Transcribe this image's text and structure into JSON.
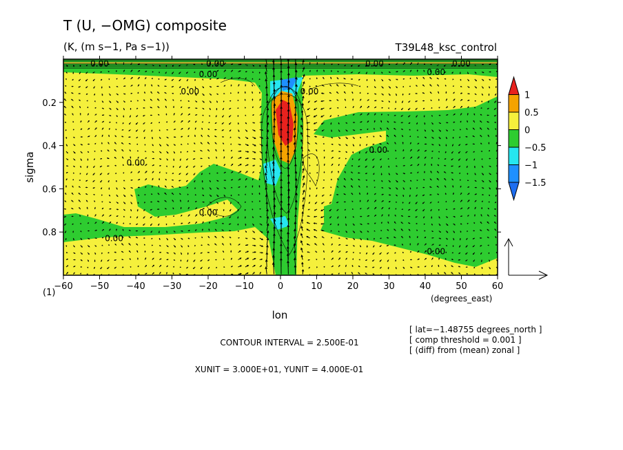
{
  "chart_data": {
    "type": "heatmap",
    "title": "T (U, −OMG) composite",
    "subtitle": "(K, (m s−1, Pa s−1))",
    "experiment": "T39L48_ksc_control",
    "xlabel": "lon",
    "ylabel": "sigma",
    "x_units": "(degrees_east)",
    "xlim": [
      -60,
      60
    ],
    "ylim": [
      1.0,
      0.0
    ],
    "y_inverted": true,
    "x_ticks": [
      -60,
      -50,
      -40,
      -30,
      -20,
      -10,
      0,
      10,
      20,
      30,
      40,
      50,
      60
    ],
    "x_tick_labels": [
      "−60",
      "−50",
      "−40",
      "−30",
      "−20",
      "−10",
      "0",
      "10",
      "20",
      "30",
      "40",
      "50",
      "60"
    ],
    "y_ticks": [
      0.2,
      0.4,
      0.6,
      0.8
    ],
    "y_tick_labels": [
      "0.2",
      "0.4",
      "0.6",
      "0.8"
    ],
    "corner_label": "(1)",
    "colorbar": {
      "levels": [
        "1",
        "0.5",
        "0",
        "−0.5",
        "−1",
        "−1.5"
      ],
      "colors": [
        "#e8221e",
        "#f5a300",
        "#f5f03c",
        "#2ecc30",
        "#26e6f0",
        "#1e90ff",
        "#1e6ef0"
      ]
    },
    "contour_labels": [
      {
        "text": "0.00",
        "lon": -50,
        "sigma": 0.02
      },
      {
        "text": "0.00",
        "lon": -18,
        "sigma": 0.02
      },
      {
        "text": "0.00",
        "lon": 50,
        "sigma": 0.02
      },
      {
        "text": "0.00",
        "lon": -20,
        "sigma": 0.07
      },
      {
        "text": "0.00",
        "lon": -25,
        "sigma": 0.15
      },
      {
        "text": "0.00",
        "lon": 8,
        "sigma": 0.15
      },
      {
        "text": "0.00",
        "lon": 26,
        "sigma": 0.02
      },
      {
        "text": "0.00",
        "lon": 43,
        "sigma": 0.06
      },
      {
        "text": "0.00",
        "lon": 27,
        "sigma": 0.42
      },
      {
        "text": "0.00",
        "lon": -40,
        "sigma": 0.48
      },
      {
        "text": "0.00",
        "lon": -20,
        "sigma": 0.71
      },
      {
        "text": "0.00",
        "lon": -46,
        "sigma": 0.83
      },
      {
        "text": "0.00",
        "lon": 43,
        "sigma": 0.89
      }
    ],
    "vector_reference": {
      "xunit": "3.000E+01",
      "yunit": "4.000E-01"
    },
    "contour_interval": "CONTOUR INTERVAL = 2.500E-01",
    "unit_text": "XUNIT = 3.000E+01, YUNIT = 4.000E-01",
    "info_lines": [
      "[ lat=−1.48755 degrees_north ]",
      "[ comp threshold = 0.001 ]",
      "[ (diff) from (mean) zonal ]"
    ]
  }
}
